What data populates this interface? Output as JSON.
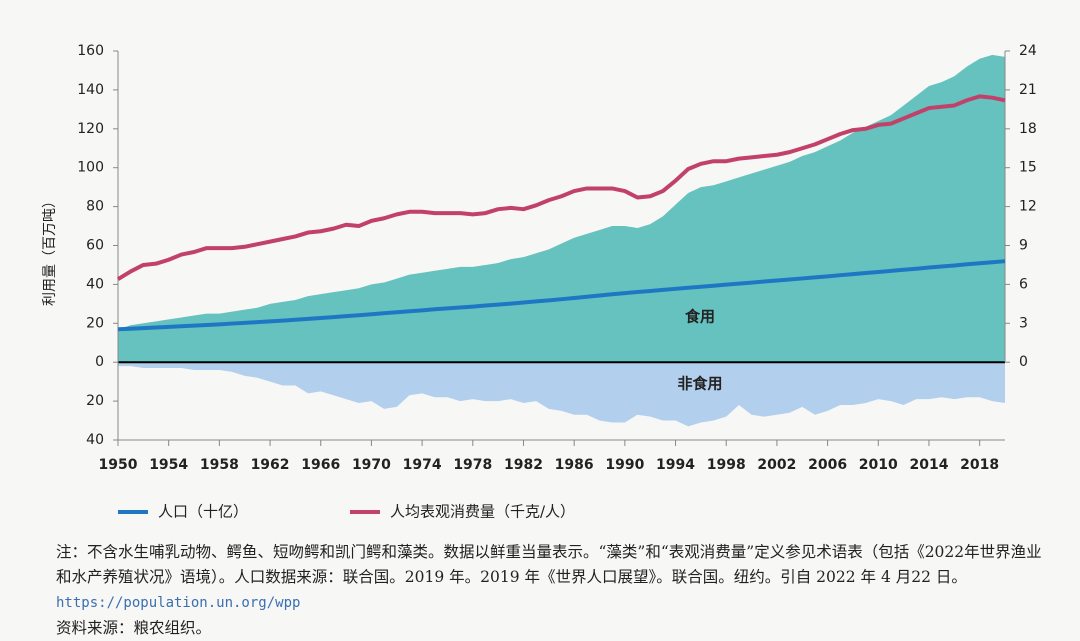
{
  "chart_data": {
    "type": "area-line",
    "y_label": "利用量（百万吨）",
    "x": [
      1950,
      1951,
      1952,
      1953,
      1954,
      1955,
      1956,
      1957,
      1958,
      1959,
      1960,
      1961,
      1962,
      1963,
      1964,
      1965,
      1966,
      1967,
      1968,
      1969,
      1970,
      1971,
      1972,
      1973,
      1974,
      1975,
      1976,
      1977,
      1978,
      1979,
      1980,
      1981,
      1982,
      1983,
      1984,
      1985,
      1986,
      1987,
      1988,
      1989,
      1990,
      1991,
      1992,
      1993,
      1994,
      1995,
      1996,
      1997,
      1998,
      1999,
      2000,
      2001,
      2002,
      2003,
      2004,
      2005,
      2006,
      2007,
      2008,
      2009,
      2010,
      2011,
      2012,
      2013,
      2014,
      2015,
      2016,
      2017,
      2018,
      2019,
      2020
    ],
    "xlim": [
      1950,
      2020
    ],
    "xticks": [
      1950,
      1954,
      1958,
      1962,
      1966,
      1970,
      1974,
      1978,
      1982,
      1986,
      1990,
      1994,
      1998,
      2002,
      2006,
      2010,
      2014,
      2018
    ],
    "ylim": [
      -40,
      160
    ],
    "yticks": [
      {
        "value": -40,
        "label": "40"
      },
      {
        "value": -20,
        "label": "20"
      },
      0,
      20,
      40,
      60,
      80,
      100,
      120,
      140,
      160
    ],
    "y2lim": [
      0,
      24
    ],
    "y2ticks": [
      0,
      3,
      6,
      9,
      12,
      15,
      18,
      21,
      24
    ],
    "series": [
      {
        "name": "食用",
        "kind": "area",
        "color": "#66c2bf",
        "values": [
          17,
          19,
          20,
          21,
          22,
          23,
          24,
          25,
          25,
          26,
          27,
          28,
          30,
          31,
          32,
          34,
          35,
          36,
          37,
          38,
          40,
          41,
          43,
          45,
          46,
          47,
          48,
          49,
          49,
          50,
          51,
          53,
          54,
          56,
          58,
          61,
          64,
          66,
          68,
          70,
          70,
          69,
          71,
          75,
          81,
          87,
          90,
          91,
          93,
          95,
          97,
          99,
          101,
          103,
          106,
          108,
          111,
          114,
          118,
          121,
          124,
          127,
          132,
          137,
          142,
          144,
          147,
          152,
          156,
          158,
          157
        ]
      },
      {
        "name": "非食用",
        "kind": "area",
        "color": "#b3cfee",
        "values": [
          -2,
          -2,
          -3,
          -3,
          -3,
          -3,
          -4,
          -4,
          -4,
          -5,
          -7,
          -8,
          -10,
          -12,
          -12,
          -16,
          -15,
          -17,
          -19,
          -21,
          -20,
          -24,
          -23,
          -17,
          -16,
          -18,
          -18,
          -20,
          -19,
          -20,
          -20,
          -19,
          -21,
          -20,
          -24,
          -25,
          -27,
          -27,
          -30,
          -31,
          -31,
          -27,
          -28,
          -30,
          -30,
          -33,
          -31,
          -30,
          -28,
          -22,
          -27,
          -28,
          -27,
          -26,
          -23,
          -27,
          -25,
          -22,
          -22,
          -21,
          -19,
          -20,
          -22,
          -19,
          -19,
          -18,
          -19,
          -18,
          -18,
          -20,
          -21
        ]
      },
      {
        "name": "人口（十亿）",
        "kind": "line",
        "axis": "y2",
        "color": "#1f77c4",
        "values": [
          2.54,
          2.58,
          2.63,
          2.68,
          2.72,
          2.77,
          2.82,
          2.87,
          2.92,
          2.98,
          3.03,
          3.09,
          3.15,
          3.21,
          3.27,
          3.34,
          3.41,
          3.48,
          3.55,
          3.62,
          3.7,
          3.78,
          3.85,
          3.93,
          4.0,
          4.08,
          4.15,
          4.22,
          4.29,
          4.37,
          4.44,
          4.52,
          4.6,
          4.69,
          4.77,
          4.86,
          4.95,
          5.05,
          5.14,
          5.24,
          5.33,
          5.41,
          5.49,
          5.58,
          5.66,
          5.74,
          5.82,
          5.9,
          5.98,
          6.06,
          6.14,
          6.22,
          6.3,
          6.38,
          6.46,
          6.54,
          6.62,
          6.71,
          6.79,
          6.88,
          6.96,
          7.04,
          7.13,
          7.21,
          7.3,
          7.38,
          7.46,
          7.55,
          7.63,
          7.71,
          7.79
        ]
      },
      {
        "name": "人均表观消费量（千克/人）",
        "kind": "line",
        "axis": "y2",
        "color": "#c2416b",
        "values": [
          6.4,
          7.0,
          7.5,
          7.6,
          7.9,
          8.3,
          8.5,
          8.8,
          8.8,
          8.8,
          8.9,
          9.1,
          9.3,
          9.5,
          9.7,
          10.0,
          10.1,
          10.3,
          10.6,
          10.5,
          10.9,
          11.1,
          11.4,
          11.6,
          11.6,
          11.5,
          11.5,
          11.5,
          11.4,
          11.5,
          11.8,
          11.9,
          11.8,
          12.1,
          12.5,
          12.8,
          13.2,
          13.4,
          13.4,
          13.4,
          13.2,
          12.7,
          12.8,
          13.2,
          14.0,
          14.9,
          15.3,
          15.5,
          15.5,
          15.7,
          15.8,
          15.9,
          16.0,
          16.2,
          16.5,
          16.8,
          17.2,
          17.6,
          17.9,
          18.0,
          18.3,
          18.4,
          18.8,
          19.2,
          19.6,
          19.7,
          19.8,
          20.2,
          20.5,
          20.4,
          20.2
        ]
      }
    ],
    "note": "注：不含水生哺乳动物、鳄鱼、短吻鳄和凯门鳄和藻类。数据以鲜重当量表示。“藻类”和“表观消费量”定义参见术语表（包括《2022年世界渔业和水产养殖状况》语境）。人口数据来源：联合国。2019 年。2019 年《世界人口展望》。联合国。纽约。引自 2022 年 4 月22 日。",
    "note_url": "https://population.un.org/wpp",
    "source": "资料来源：粮农组织。"
  }
}
